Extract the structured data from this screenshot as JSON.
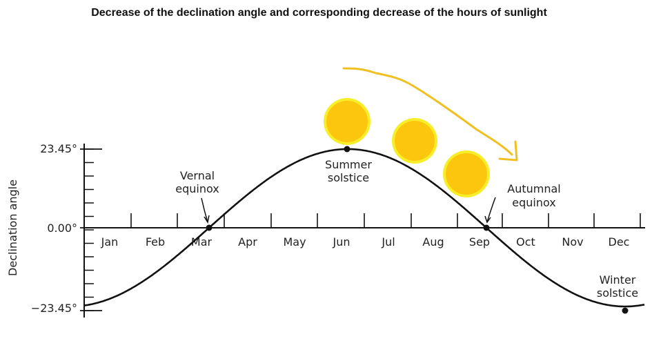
{
  "title": "Decrease of the declination angle and corresponding decrease of the hours of sunlight",
  "y_axis": {
    "label": "Declination angle",
    "ticks": [
      "23.45°",
      "0.00°",
      "−23.45°"
    ]
  },
  "months": [
    "Jan",
    "Feb",
    "Mar",
    "Apr",
    "May",
    "Jun",
    "Jul",
    "Aug",
    "Sep",
    "Oct",
    "Nov",
    "Dec"
  ],
  "annotations": {
    "vernal_line1": "Vernal",
    "vernal_line2": "equinox",
    "summer_line1": "Summer",
    "summer_line2": "solstice",
    "autumnal_line1": "Autumnal",
    "autumnal_line2": "equinox",
    "winter_line1": "Winter",
    "winter_line2": "solstice"
  },
  "colors": {
    "sun_fill": "#fcc60e",
    "sun_ring": "#f7ee2a",
    "arrow": "#f0c020",
    "curve": "#111111"
  },
  "chart_data": {
    "type": "line",
    "x": [
      "Jan",
      "Feb",
      "Mar",
      "Apr",
      "May",
      "Jun",
      "Jul",
      "Aug",
      "Sep",
      "Oct",
      "Nov",
      "Dec"
    ],
    "ylim": [
      -23.45,
      23.45
    ],
    "series": [
      {
        "values": [
          -21,
          -13,
          -2,
          10,
          19,
          23.45,
          21,
          13,
          2,
          -10,
          -19,
          -23.45
        ]
      }
    ],
    "key_points": {
      "vernal_equinox": 0,
      "summer_solstice": 23.45,
      "autumnal_equinox": 0,
      "winter_solstice": -23.45
    }
  }
}
